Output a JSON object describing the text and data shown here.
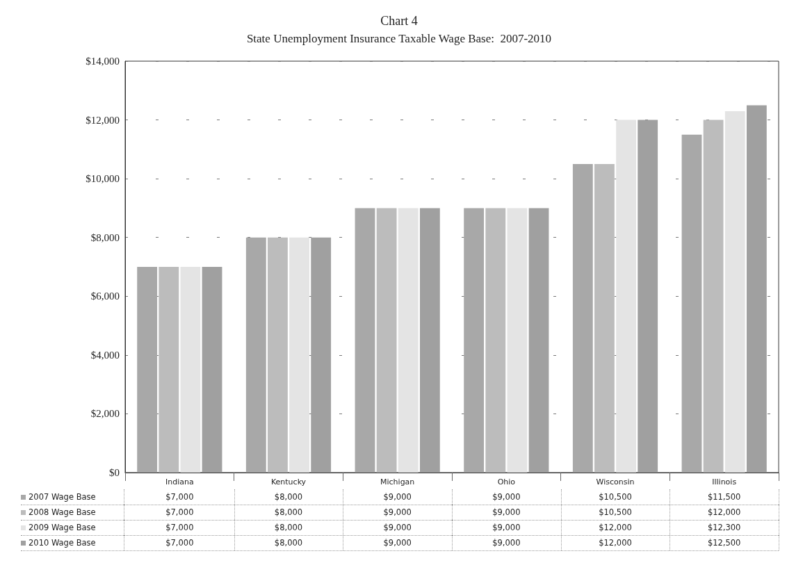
{
  "chart_data": {
    "type": "bar",
    "title": "Chart 4",
    "subtitle": "State Unemployment Insurance Taxable Wage Base:  2007-2010",
    "categories": [
      "Indiana",
      "Kentucky",
      "Michigan",
      "Ohio",
      "Wisconsin",
      "Illinois"
    ],
    "series": [
      {
        "name": "2007 Wage Base",
        "color": "#a8a8a8",
        "values": [
          7000,
          8000,
          9000,
          9000,
          10500,
          11500
        ],
        "value_labels": [
          "$7,000",
          "$8,000",
          "$9,000",
          "$9,000",
          "$10,500",
          "$11,500"
        ]
      },
      {
        "name": "2008 Wage Base",
        "color": "#bcbcbc",
        "values": [
          7000,
          8000,
          9000,
          9000,
          10500,
          12000
        ],
        "value_labels": [
          "$7,000",
          "$8,000",
          "$9,000",
          "$9,000",
          "$10,500",
          "$12,000"
        ]
      },
      {
        "name": "2009 Wage Base",
        "color": "#e4e4e4",
        "values": [
          7000,
          8000,
          9000,
          9000,
          12000,
          12300
        ],
        "value_labels": [
          "$7,000",
          "$8,000",
          "$9,000",
          "$9,000",
          "$12,000",
          "$12,300"
        ]
      },
      {
        "name": "2010 Wage Base",
        "color": "#a0a0a0",
        "values": [
          7000,
          8000,
          9000,
          9000,
          12000,
          12500
        ],
        "value_labels": [
          "$7,000",
          "$8,000",
          "$9,000",
          "$9,000",
          "$12,000",
          "$12,500"
        ]
      }
    ],
    "ylim": [
      0,
      14000
    ],
    "yticks": [
      {
        "value": 0,
        "label": "$0"
      },
      {
        "value": 2000,
        "label": "$2,000"
      },
      {
        "value": 4000,
        "label": "$4,000"
      },
      {
        "value": 6000,
        "label": "$6,000"
      },
      {
        "value": 8000,
        "label": "$8,000"
      },
      {
        "value": 10000,
        "label": "$10,000"
      },
      {
        "value": 12000,
        "label": "$12,000"
      },
      {
        "value": 14000,
        "label": "$14,000"
      }
    ],
    "grid": "y",
    "legend": "bottom"
  }
}
